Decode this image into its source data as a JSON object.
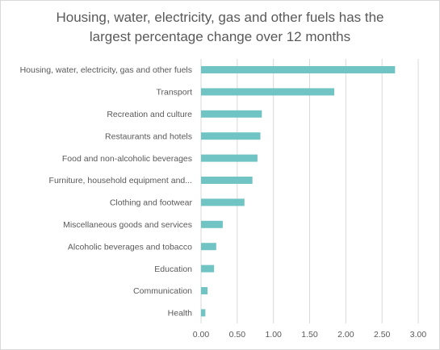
{
  "chart_data": {
    "type": "bar",
    "orientation": "horizontal",
    "title_lines": [
      "Housing, water, electricity, gas and other fuels has the",
      "largest percentage change over 12 months"
    ],
    "categories": [
      "Housing, water, electricity, gas and other fuels",
      "Transport",
      "Recreation and culture",
      "Restaurants and hotels",
      "Food and non-alcoholic beverages",
      "Furniture, household equipment and...",
      "Clothing and footwear",
      "Miscellaneous goods and services",
      "Alcoholic beverages and tobacco",
      "Education",
      "Communication",
      "Health"
    ],
    "values": [
      2.68,
      1.84,
      0.84,
      0.82,
      0.78,
      0.71,
      0.6,
      0.3,
      0.21,
      0.18,
      0.09,
      0.06
    ],
    "xlim": [
      0,
      3
    ],
    "x_ticks": [
      "0.00",
      "0.50",
      "1.00",
      "1.50",
      "2.00",
      "2.50",
      "3.00"
    ],
    "gridlines": "vertical",
    "legend": "none",
    "colors": {
      "bar": "#70c4c4",
      "grid": "#d9d9d9",
      "text": "#595959"
    }
  }
}
